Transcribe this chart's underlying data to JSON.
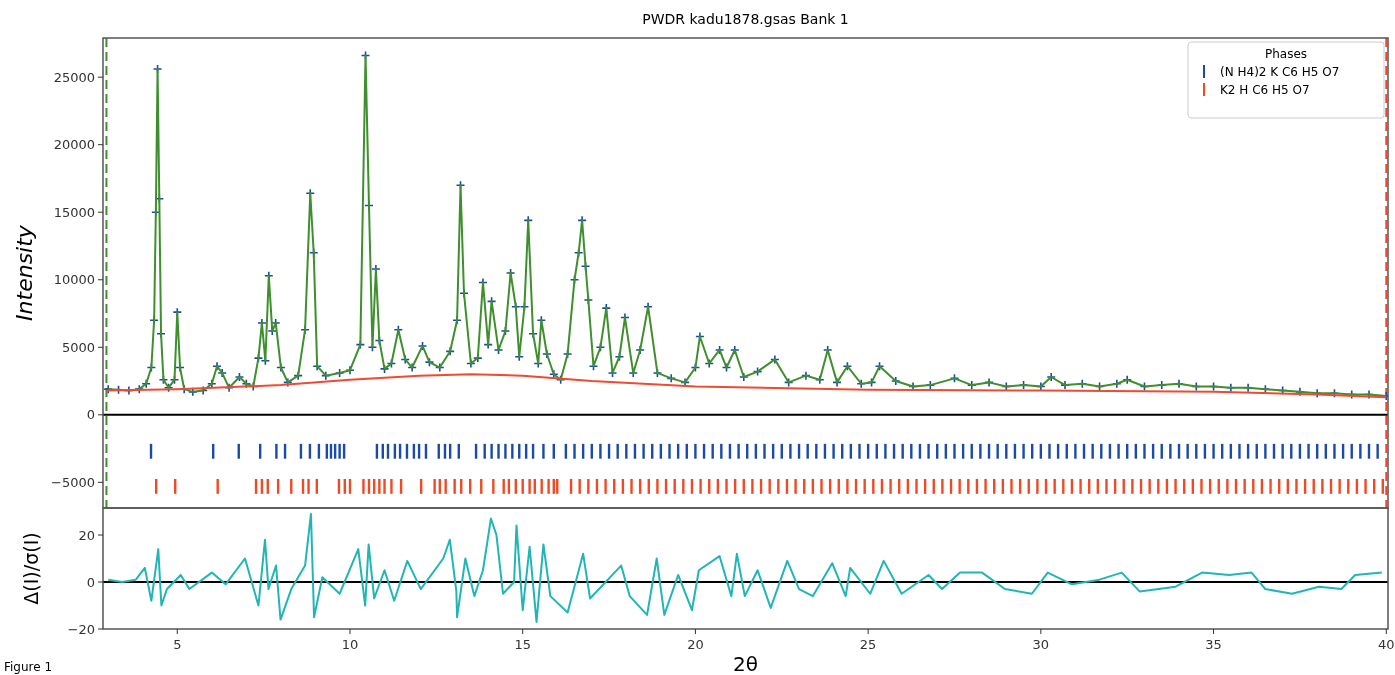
{
  "chart_data": [
    {
      "type": "line",
      "title": "PWDR kadu1878.gsas Bank 1",
      "ylabel": "Intensity",
      "legend_title": "Phases",
      "legend": "top right",
      "tick_labels": "y",
      "xlim": [
        2.85,
        40.05
      ],
      "ylim": [
        -6900,
        27900
      ],
      "yticks": [
        {
          "value": -5000,
          "label": "−5000"
        },
        0,
        5000,
        10000,
        15000,
        20000,
        25000
      ],
      "x": [
        3.0,
        3.3,
        3.6,
        3.9,
        4.1,
        4.25,
        4.33,
        4.38,
        4.43,
        4.48,
        4.53,
        4.6,
        4.75,
        4.92,
        5.0,
        5.08,
        5.2,
        5.45,
        5.75,
        6.0,
        6.15,
        6.3,
        6.5,
        6.8,
        7.0,
        7.2,
        7.35,
        7.45,
        7.55,
        7.65,
        7.75,
        7.85,
        8.0,
        8.2,
        8.5,
        8.7,
        8.85,
        8.95,
        9.05,
        9.3,
        9.7,
        10.0,
        10.3,
        10.45,
        10.55,
        10.65,
        10.75,
        10.85,
        11.0,
        11.2,
        11.4,
        11.6,
        11.8,
        12.1,
        12.3,
        12.6,
        12.9,
        13.1,
        13.2,
        13.3,
        13.5,
        13.7,
        13.85,
        14.0,
        14.1,
        14.3,
        14.5,
        14.65,
        14.8,
        14.9,
        15.05,
        15.16,
        15.3,
        15.45,
        15.54,
        15.7,
        15.9,
        16.1,
        16.3,
        16.5,
        16.62,
        16.72,
        16.82,
        16.9,
        17.05,
        17.25,
        17.42,
        17.6,
        17.8,
        17.96,
        18.2,
        18.4,
        18.63,
        18.9,
        19.3,
        19.7,
        20.0,
        20.13,
        20.4,
        20.7,
        20.9,
        21.14,
        21.4,
        21.8,
        22.3,
        22.7,
        23.2,
        23.6,
        23.83,
        24.1,
        24.4,
        24.8,
        25.1,
        25.33,
        25.8,
        26.3,
        26.8,
        27.5,
        28.0,
        28.5,
        29.0,
        29.5,
        30.0,
        30.3,
        30.7,
        31.2,
        31.7,
        32.2,
        32.5,
        33.0,
        33.5,
        34.0,
        34.5,
        35.0,
        35.5,
        36.0,
        36.5,
        37.0,
        37.5,
        38.0,
        38.5,
        39.0,
        39.5,
        40.0
      ],
      "series": [
        {
          "type": "scatter",
          "marker": "cross",
          "color": "#1a4ba8",
          "values": [
            1900,
            1850,
            1800,
            1900,
            2300,
            3500,
            7000,
            15000,
            25600,
            16000,
            6000,
            2600,
            2000,
            2600,
            7600,
            3500,
            1900,
            1700,
            1800,
            2300,
            3600,
            3100,
            2000,
            2800,
            2300,
            2100,
            4200,
            6800,
            4000,
            10300,
            6200,
            6800,
            3500,
            2400,
            2900,
            6300,
            16400,
            12000,
            3600,
            2900,
            3100,
            3300,
            5200,
            26600,
            15500,
            5000,
            10800,
            5500,
            3400,
            3800,
            6300,
            4100,
            3500,
            5100,
            3900,
            3500,
            4700,
            7000,
            17000,
            9000,
            3800,
            4200,
            9800,
            5200,
            8400,
            4800,
            6200,
            10500,
            8000,
            4300,
            8000,
            14400,
            6000,
            3800,
            7000,
            4500,
            3000,
            2600,
            4500,
            10000,
            12000,
            14400,
            11000,
            8500,
            3600,
            5000,
            7900,
            3100,
            4300,
            7200,
            3100,
            4800,
            8000,
            3100,
            2700,
            2400,
            3500,
            5800,
            3800,
            4800,
            3500,
            4800,
            2800,
            3200,
            4100,
            2400,
            2900,
            2600,
            4800,
            2400,
            3600,
            2300,
            2400,
            3600,
            2500,
            2100,
            2200,
            2700,
            2200,
            2400,
            2100,
            2200,
            2100,
            2800,
            2200,
            2300,
            2100,
            2300,
            2600,
            2100,
            2200,
            2300,
            2100,
            2100,
            2000,
            2000,
            1900,
            1800,
            1700,
            1600,
            1600,
            1500,
            1500,
            1400
          ]
        },
        {
          "color": "#3f8f2f",
          "values": [
            1900,
            1850,
            1800,
            1900,
            2300,
            3500,
            7000,
            15000,
            25600,
            16000,
            6000,
            2600,
            2000,
            2600,
            7600,
            3500,
            1900,
            1700,
            1800,
            2300,
            3600,
            3100,
            2000,
            2800,
            2300,
            2100,
            4200,
            6800,
            4000,
            10300,
            6200,
            6800,
            3500,
            2400,
            2900,
            6300,
            16400,
            12000,
            3600,
            2900,
            3100,
            3300,
            5200,
            26600,
            15500,
            5000,
            10800,
            5500,
            3400,
            3800,
            6300,
            4100,
            3500,
            5100,
            3900,
            3500,
            4700,
            7000,
            17000,
            9000,
            3800,
            4200,
            9800,
            5200,
            8400,
            4800,
            6200,
            10500,
            8000,
            4300,
            8000,
            14400,
            6000,
            3800,
            7000,
            4500,
            3000,
            2600,
            4500,
            10000,
            12000,
            14400,
            11000,
            8500,
            3600,
            5000,
            7900,
            3100,
            4300,
            7200,
            3100,
            4800,
            8000,
            3100,
            2700,
            2400,
            3500,
            5800,
            3800,
            4800,
            3500,
            4800,
            2800,
            3200,
            4100,
            2400,
            2900,
            2600,
            4800,
            2400,
            3600,
            2300,
            2400,
            3600,
            2500,
            2100,
            2200,
            2700,
            2200,
            2400,
            2100,
            2200,
            2100,
            2800,
            2200,
            2300,
            2100,
            2300,
            2600,
            2100,
            2200,
            2300,
            2100,
            2100,
            2000,
            2000,
            1900,
            1800,
            1700,
            1600,
            1600,
            1500,
            1500,
            1400
          ]
        },
        {
          "type": "line",
          "color": "#f24a32",
          "x": [
            2.95,
            5,
            8,
            10,
            12,
            13.5,
            15,
            17,
            20,
            25,
            30,
            35,
            38,
            40
          ],
          "values": [
            1800,
            1900,
            2200,
            2600,
            2900,
            3000,
            2900,
            2500,
            2100,
            1850,
            1800,
            1700,
            1500,
            1300
          ]
        },
        {
          "type": "bar",
          "name": "(N H4)2 K C6 H5 O7",
          "color": "#1a4ba8",
          "x": [
            4.24,
            6.04,
            6.78,
            7.4,
            7.87,
            8.12,
            8.58,
            8.84,
            9.1,
            9.33,
            9.45,
            9.57,
            9.7,
            9.83,
            10.78,
            10.95,
            11.1,
            11.3,
            11.45,
            11.65,
            11.85,
            12.0,
            12.2,
            12.57,
            12.75,
            12.9,
            13.15,
            13.65,
            13.9,
            14.1,
            14.3,
            14.5,
            14.7,
            14.9,
            15.1,
            15.3,
            15.6,
            15.9,
            16.25,
            16.5,
            16.75,
            17,
            17.25,
            17.5,
            17.75,
            18,
            18.25,
            18.5,
            18.75,
            19,
            19.25,
            19.5,
            19.75,
            20,
            20.25,
            20.5,
            20.75,
            21,
            21.25,
            21.5,
            21.75,
            22,
            22.25,
            22.5,
            22.75,
            23,
            23.25,
            23.5,
            23.75,
            24,
            24.25,
            24.5,
            24.75,
            25,
            25.25,
            25.5,
            25.75,
            26,
            26.25,
            26.5,
            26.75,
            27,
            27.25,
            27.5,
            27.75,
            28,
            28.25,
            28.5,
            28.75,
            29,
            29.25,
            29.5,
            29.75,
            30,
            30.25,
            30.5,
            30.75,
            31,
            31.25,
            31.5,
            31.75,
            32,
            32.25,
            32.5,
            32.75,
            33,
            33.25,
            33.5,
            33.75,
            34,
            34.25,
            34.5,
            34.75,
            35,
            35.25,
            35.5,
            35.75,
            36,
            36.25,
            36.5,
            36.75,
            37,
            37.25,
            37.5,
            37.75,
            38,
            38.25,
            38.5,
            38.75,
            39,
            39.25,
            39.5,
            39.75
          ],
          "base": [
            -3250,
            -3250,
            -3250,
            -3250,
            -3250,
            -3250,
            -3250,
            -3250,
            -3250,
            -3250,
            -3250,
            -3250,
            -3250,
            -3250,
            -3250,
            -3250,
            -3250,
            -3250,
            -3250,
            -3250,
            -3250,
            -3250,
            -3250,
            -3250,
            -3250,
            -3250,
            -3250,
            -3250,
            -3250,
            -3250,
            -3250,
            -3250,
            -3250,
            -3250,
            -3250,
            -3250,
            -3250,
            -3250,
            -3250,
            -3250,
            -3250,
            -3250,
            -3250,
            -3250,
            -3250,
            -3250,
            -3250,
            -3250,
            -3250,
            -3250,
            -3250,
            -3250,
            -3250,
            -3250,
            -3250,
            -3250,
            -3250,
            -3250,
            -3250,
            -3250,
            -3250,
            -3250,
            -3250,
            -3250,
            -3250,
            -3250,
            -3250,
            -3250,
            -3250,
            -3250,
            -3250,
            -3250,
            -3250,
            -3250,
            -3250,
            -3250,
            -3250,
            -3250,
            -3250,
            -3250,
            -3250,
            -3250,
            -3250,
            -3250,
            -3250,
            -3250,
            -3250,
            -3250,
            -3250,
            -3250,
            -3250,
            -3250,
            -3250,
            -3250,
            -3250,
            -3250,
            -3250,
            -3250,
            -3250,
            -3250,
            -3250,
            -3250,
            -3250,
            -3250,
            -3250,
            -3250,
            -3250,
            -3250,
            -3250,
            -3250,
            -3250,
            -3250,
            -3250,
            -3250,
            -3250,
            -3250,
            -3250,
            -3250,
            -3250,
            -3250,
            -3250,
            -3250,
            -3250,
            -3250,
            -3250,
            -3250,
            -3250,
            -3250,
            -3250,
            -3250,
            -3250,
            -3250,
            -3250
          ],
          "values": [
            1100,
            1100,
            1100,
            1100,
            1100,
            1100,
            1100,
            1100,
            1100,
            1100,
            1100,
            1100,
            1100,
            1100,
            1100,
            1100,
            1100,
            1100,
            1100,
            1100,
            1100,
            1100,
            1100,
            1100,
            1100,
            1100,
            1100,
            1100,
            1100,
            1100,
            1100,
            1100,
            1100,
            1100,
            1100,
            1100,
            1100,
            1100,
            1100,
            1100,
            1100,
            1100,
            1100,
            1100,
            1100,
            1100,
            1100,
            1100,
            1100,
            1100,
            1100,
            1100,
            1100,
            1100,
            1100,
            1100,
            1100,
            1100,
            1100,
            1100,
            1100,
            1100,
            1100,
            1100,
            1100,
            1100,
            1100,
            1100,
            1100,
            1100,
            1100,
            1100,
            1100,
            1100,
            1100,
            1100,
            1100,
            1100,
            1100,
            1100,
            1100,
            1100,
            1100,
            1100,
            1100,
            1100,
            1100,
            1100,
            1100,
            1100,
            1100,
            1100,
            1100,
            1100,
            1100,
            1100,
            1100,
            1100,
            1100,
            1100,
            1100,
            1100,
            1100,
            1100,
            1100,
            1100,
            1100,
            1100,
            1100,
            1100,
            1100,
            1100,
            1100,
            1100,
            1100,
            1100,
            1100,
            1100,
            1100,
            1100,
            1100,
            1100,
            1100,
            1100,
            1100,
            1100,
            1100,
            1100,
            1100,
            1100,
            1100,
            1100,
            1100
          ]
        },
        {
          "type": "bar",
          "name": "K2 H C6 H5 O7",
          "color": "#f04a24",
          "x": [
            4.39,
            4.94,
            6.17,
            7.28,
            7.45,
            7.62,
            7.92,
            8.3,
            8.64,
            8.8,
            9.04,
            9.68,
            9.85,
            10.0,
            10.39,
            10.55,
            10.7,
            10.85,
            11.0,
            11.2,
            11.48,
            12.06,
            12.45,
            12.6,
            12.77,
            13.03,
            13.22,
            13.48,
            13.8,
            14.15,
            14.45,
            14.6,
            14.8,
            15.0,
            15.2,
            15.35,
            15.55,
            15.75,
            15.9,
            16.0,
            16.4,
            16.65,
            16.9,
            17.15,
            17.4,
            17.65,
            17.9,
            18.15,
            18.4,
            18.65,
            18.9,
            19.15,
            19.4,
            19.65,
            19.9,
            20.15,
            20.4,
            20.65,
            20.9,
            21.15,
            21.4,
            21.65,
            21.9,
            22.15,
            22.4,
            22.65,
            22.9,
            23.15,
            23.4,
            23.65,
            23.9,
            24.15,
            24.4,
            24.65,
            24.9,
            25.15,
            25.4,
            25.65,
            25.9,
            26.15,
            26.4,
            26.65,
            26.9,
            27.15,
            27.4,
            27.65,
            27.9,
            28.15,
            28.4,
            28.65,
            28.9,
            29.15,
            29.4,
            29.65,
            29.9,
            30.15,
            30.4,
            30.65,
            30.9,
            31.15,
            31.4,
            31.65,
            31.9,
            32.15,
            32.4,
            32.65,
            32.9,
            33.15,
            33.4,
            33.65,
            33.9,
            34.15,
            34.4,
            34.65,
            34.9,
            35.15,
            35.4,
            35.65,
            35.9,
            36.15,
            36.4,
            36.65,
            36.9,
            37.15,
            37.4,
            37.65,
            37.9,
            38.15,
            38.4,
            38.65,
            38.9,
            39.15,
            39.4,
            39.65,
            39.9
          ],
          "base": [
            -5850,
            -5850,
            -5850,
            -5850,
            -5850,
            -5850,
            -5850,
            -5850,
            -5850,
            -5850,
            -5850,
            -5850,
            -5850,
            -5850,
            -5850,
            -5850,
            -5850,
            -5850,
            -5850,
            -5850,
            -5850,
            -5850,
            -5850,
            -5850,
            -5850,
            -5850,
            -5850,
            -5850,
            -5850,
            -5850,
            -5850,
            -5850,
            -5850,
            -5850,
            -5850,
            -5850,
            -5850,
            -5850,
            -5850,
            -5850,
            -5850,
            -5850,
            -5850,
            -5850,
            -5850,
            -5850,
            -5850,
            -5850,
            -5850,
            -5850,
            -5850,
            -5850,
            -5850,
            -5850,
            -5850,
            -5850,
            -5850,
            -5850,
            -5850,
            -5850,
            -5850,
            -5850,
            -5850,
            -5850,
            -5850,
            -5850,
            -5850,
            -5850,
            -5850,
            -5850,
            -5850,
            -5850,
            -5850,
            -5850,
            -5850,
            -5850,
            -5850,
            -5850,
            -5850,
            -5850,
            -5850,
            -5850,
            -5850,
            -5850,
            -5850,
            -5850,
            -5850,
            -5850,
            -5850,
            -5850,
            -5850,
            -5850,
            -5850,
            -5850,
            -5850,
            -5850,
            -5850,
            -5850,
            -5850,
            -5850,
            -5850,
            -5850,
            -5850,
            -5850,
            -5850,
            -5850,
            -5850,
            -5850,
            -5850,
            -5850,
            -5850,
            -5850,
            -5850,
            -5850,
            -5850,
            -5850,
            -5850,
            -5850,
            -5850,
            -5850,
            -5850,
            -5850,
            -5850,
            -5850,
            -5850,
            -5850,
            -5850,
            -5850,
            -5850,
            -5850,
            -5850,
            -5850,
            -5850,
            -5850,
            -5850
          ],
          "values": [
            1100,
            1100,
            1100,
            1100,
            1100,
            1100,
            1100,
            1100,
            1100,
            1100,
            1100,
            1100,
            1100,
            1100,
            1100,
            1100,
            1100,
            1100,
            1100,
            1100,
            1100,
            1100,
            1100,
            1100,
            1100,
            1100,
            1100,
            1100,
            1100,
            1100,
            1100,
            1100,
            1100,
            1100,
            1100,
            1100,
            1100,
            1100,
            1100,
            1100,
            1100,
            1100,
            1100,
            1100,
            1100,
            1100,
            1100,
            1100,
            1100,
            1100,
            1100,
            1100,
            1100,
            1100,
            1100,
            1100,
            1100,
            1100,
            1100,
            1100,
            1100,
            1100,
            1100,
            1100,
            1100,
            1100,
            1100,
            1100,
            1100,
            1100,
            1100,
            1100,
            1100,
            1100,
            1100,
            1100,
            1100,
            1100,
            1100,
            1100,
            1100,
            1100,
            1100,
            1100,
            1100,
            1100,
            1100,
            1100,
            1100,
            1100,
            1100,
            1100,
            1100,
            1100,
            1100,
            1100,
            1100,
            1100,
            1100,
            1100,
            1100,
            1100,
            1100,
            1100,
            1100,
            1100,
            1100,
            1100,
            1100,
            1100,
            1100,
            1100,
            1100,
            1100,
            1100,
            1100,
            1100,
            1100,
            1100,
            1100,
            1100,
            1100,
            1100,
            1100,
            1100,
            1100,
            1100,
            1100,
            1100,
            1100,
            1100,
            1100,
            1100,
            1100,
            1100
          ]
        }
      ],
      "ref_lines": [
        {
          "axis": "x",
          "value": 2.95,
          "color": "#3f8f2f",
          "line_style": "dashed"
        },
        {
          "axis": "x",
          "value": 40.0,
          "color": "#f24a32",
          "line_style": "dashed"
        },
        {
          "axis": "y",
          "value": 0,
          "color": "#000000"
        }
      ]
    },
    {
      "type": "line",
      "xlabel": "2θ",
      "ylabel": "Δ(I)/σ(I)",
      "annotations": [
        "Figure 1"
      ],
      "xlim": [
        2.85,
        40.05
      ],
      "ylim": [
        -20,
        31.5
      ],
      "xticks": [
        5,
        10,
        15,
        20,
        25,
        30,
        35,
        40
      ],
      "yticks": [
        {
          "value": -20,
          "label": "−20"
        },
        0,
        20
      ],
      "series": [
        {
          "color": "#22b5b5",
          "x": [
            3.0,
            3.4,
            3.8,
            4.06,
            4.25,
            4.45,
            4.54,
            4.7,
            5.1,
            5.35,
            6.0,
            6.4,
            6.96,
            7.35,
            7.54,
            7.64,
            7.86,
            7.99,
            8.3,
            8.7,
            8.87,
            8.96,
            9.2,
            9.7,
            10.24,
            10.44,
            10.54,
            10.7,
            11.0,
            11.28,
            11.66,
            12.05,
            12.7,
            12.89,
            13.08,
            13.1,
            13.34,
            13.6,
            13.85,
            14.08,
            14.24,
            14.43,
            14.75,
            14.82,
            15.0,
            15.2,
            15.4,
            15.6,
            15.8,
            16.3,
            16.75,
            16.95,
            17.85,
            18.1,
            18.6,
            18.88,
            19.1,
            19.5,
            19.9,
            20.1,
            20.7,
            21.04,
            21.2,
            21.43,
            21.8,
            22.18,
            22.66,
            23.0,
            23.4,
            23.96,
            24.35,
            24.48,
            25.06,
            25.45,
            25.97,
            26.75,
            27.14,
            27.66,
            28.3,
            28.96,
            29.74,
            30.2,
            30.9,
            31.7,
            32.34,
            32.86,
            33.9,
            34.67,
            35.45,
            36.1,
            36.5,
            37.27,
            38.05,
            38.7,
            39.1,
            39.87
          ],
          "values": [
            1,
            0,
            1,
            6,
            -8,
            14,
            -10,
            -3,
            3,
            -3,
            4,
            -1,
            10,
            -10,
            18,
            -3,
            7,
            -16,
            -3,
            7,
            29,
            -15,
            2,
            -5,
            14,
            -10,
            16,
            -7,
            5,
            -8,
            9,
            -3,
            10,
            18,
            -4,
            -15,
            10,
            -6,
            5,
            27,
            20,
            -5,
            0,
            24,
            -12,
            15,
            -17,
            16,
            -6,
            -13,
            12,
            -7,
            7,
            -6,
            -14,
            10,
            -14,
            3,
            -12,
            5,
            11,
            -6,
            12,
            -6,
            5,
            -11,
            9,
            -3,
            -6,
            8,
            -6,
            6,
            -5,
            9,
            -5,
            3,
            -3,
            4,
            4,
            -3,
            -5,
            4,
            -1,
            1,
            4,
            -4,
            -2,
            4,
            3,
            4,
            -3,
            -5,
            -2,
            -3,
            3,
            4
          ]
        }
      ],
      "ref_lines": [
        {
          "axis": "y",
          "value": 0,
          "color": "#000000"
        }
      ]
    }
  ]
}
